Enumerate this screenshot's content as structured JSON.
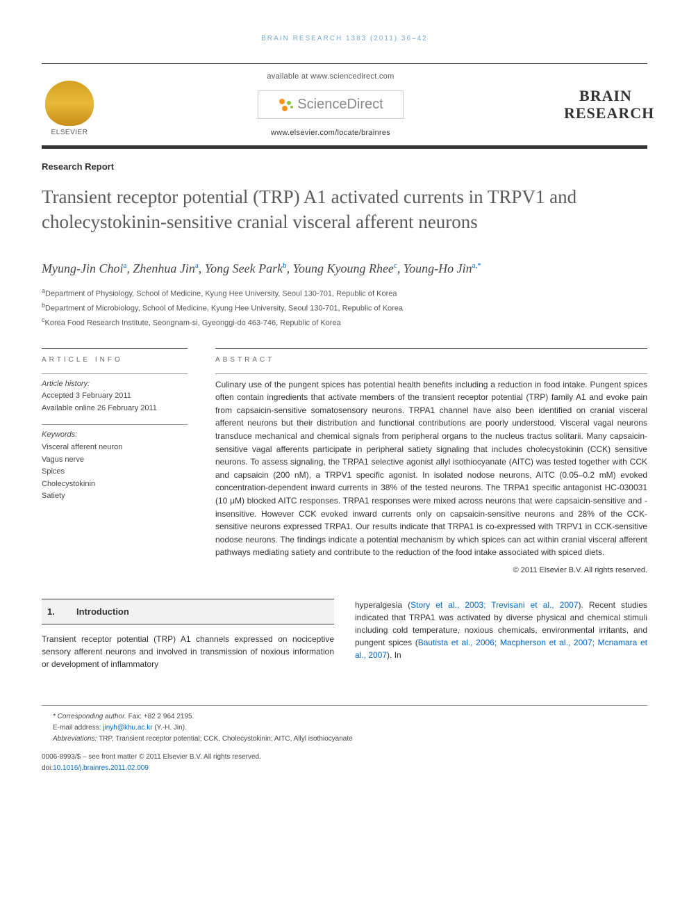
{
  "running_head": "BRAIN RESEARCH 1383 (2011) 36–42",
  "header": {
    "elsevier": "ELSEVIER",
    "available_at": "available at www.sciencedirect.com",
    "sd_brand": "ScienceDirect",
    "journal_url": "www.elsevier.com/locate/brainres",
    "journal_line1": "BRAIN",
    "journal_line2": "RESEARCH"
  },
  "article_type": "Research Report",
  "title": "Transient receptor potential (TRP) A1 activated currents in TRPV1 and cholecystokinin-sensitive cranial visceral afferent neurons",
  "authors": [
    {
      "name": "Myung-Jin Choi",
      "sup": "a"
    },
    {
      "name": "Zhenhua Jin",
      "sup": "a"
    },
    {
      "name": "Yong Seek Park",
      "sup": "b"
    },
    {
      "name": "Young Kyoung Rhee",
      "sup": "c"
    },
    {
      "name": "Young-Ho Jin",
      "sup": "a,*"
    }
  ],
  "affiliations": [
    {
      "sup": "a",
      "text": "Department of Physiology, School of Medicine, Kyung Hee University, Seoul 130-701, Republic of Korea"
    },
    {
      "sup": "b",
      "text": "Department of Microbiology, School of Medicine, Kyung Hee University, Seoul 130-701, Republic of Korea"
    },
    {
      "sup": "c",
      "text": "Korea Food Research Institute, Seongnam-si, Gyeonggi-do 463-746, Republic of Korea"
    }
  ],
  "article_info": {
    "heading": "ARTICLE INFO",
    "history_label": "Article history:",
    "accepted": "Accepted 3 February 2011",
    "online": "Available online 26 February 2011",
    "keywords_label": "Keywords:",
    "keywords": [
      "Visceral afferent neuron",
      "Vagus nerve",
      "Spices",
      "Cholecystokinin",
      "Satiety"
    ]
  },
  "abstract": {
    "heading": "ABSTRACT",
    "text": "Culinary use of the pungent spices has potential health benefits including a reduction in food intake. Pungent spices often contain ingredients that activate members of the transient receptor potential (TRP) family A1 and evoke pain from capsaicin-sensitive somatosensory neurons. TRPA1 channel have also been identified on cranial visceral afferent neurons but their distribution and functional contributions are poorly understood. Visceral vagal neurons transduce mechanical and chemical signals from peripheral organs to the nucleus tractus solitarii. Many capsaicin-sensitive vagal afferents participate in peripheral satiety signaling that includes cholecystokinin (CCK) sensitive neurons. To assess signaling, the TRPA1 selective agonist allyl isothiocyanate (AITC) was tested together with CCK and capsaicin (200 nM), a TRPV1 specific agonist. In isolated nodose neurons, AITC (0.05–0.2 mM) evoked concentration-dependent inward currents in 38% of the tested neurons. The TRPA1 specific antagonist HC-030031 (10 μM) blocked AITC responses. TRPA1 responses were mixed across neurons that were capsaicin-sensitive and -insensitive. However CCK evoked inward currents only on capsaicin-sensitive neurons and 28% of the CCK-sensitive neurons expressed TRPA1. Our results indicate that TRPA1 is co-expressed with TRPV1 in CCK-sensitive nodose neurons. The findings indicate a potential mechanism by which spices can act within cranial visceral afferent pathways mediating satiety and contribute to the reduction of the food intake associated with spiced diets.",
    "copyright": "© 2011 Elsevier B.V. All rights reserved."
  },
  "body": {
    "section_num": "1.",
    "section_title": "Introduction",
    "col1": "Transient receptor potential (TRP) A1 channels expressed on nociceptive sensory afferent neurons and involved in transmission of noxious information or development of inflammatory",
    "col2_pre": "hyperalgesia (",
    "col2_ref1": "Story et al., 2003; Trevisani et al., 2007",
    "col2_mid": "). Recent studies indicated that TRPA1 was activated by diverse physical and chemical stimuli including cold temperature, noxious chemicals, environmental irritants, and pungent spices (",
    "col2_ref2": "Bautista et al., 2006; Macpherson et al., 2007; Mcnamara et al., 2007",
    "col2_post": "). In"
  },
  "footer": {
    "corr_label": "* Corresponding author.",
    "corr_fax": " Fax: +82 2 964 2195.",
    "email_label": "E-mail address: ",
    "email": "jinyh@khu.ac.kr",
    "email_attr": " (Y.-H. Jin).",
    "abbrev_label": "Abbreviations: ",
    "abbrev": "TRP, Transient receptor potential; CCK, Cholecystokinin; AITC, Allyl isothiocyanate",
    "issn": "0006-8993/$ – see front matter © 2011 Elsevier B.V. All rights reserved.",
    "doi_label": "doi:",
    "doi": "10.1016/j.brainres.2011.02.009"
  }
}
